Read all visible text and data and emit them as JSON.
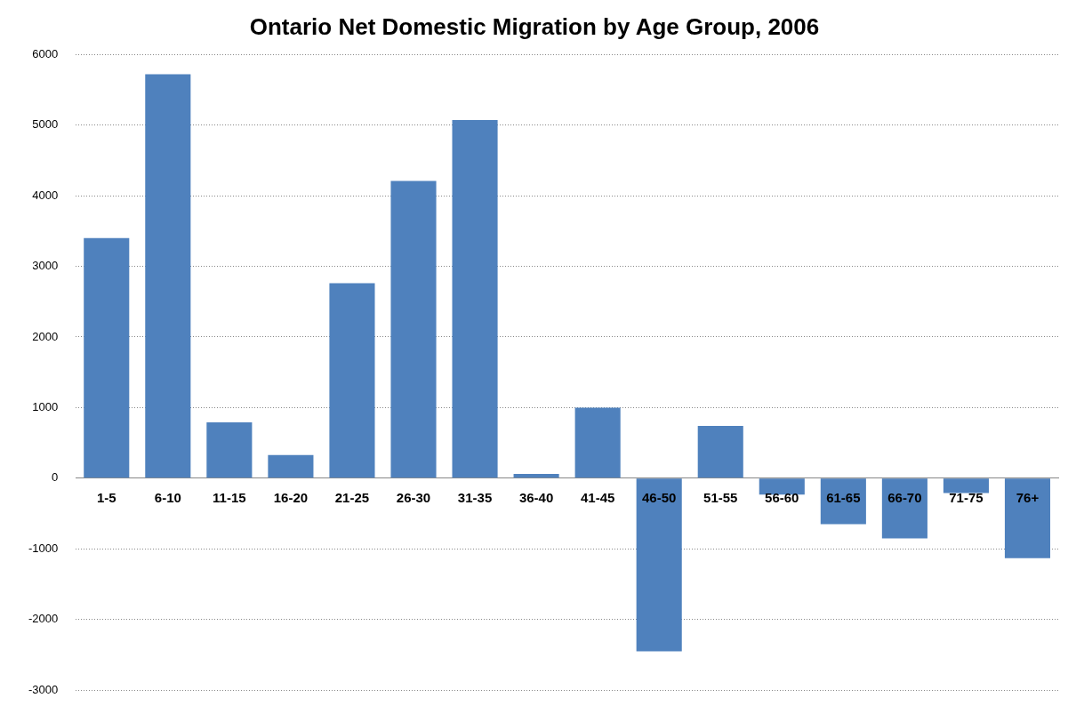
{
  "chart_data": {
    "type": "bar",
    "title": "Ontario Net Domestic Migration by Age Group, 2006",
    "categories": [
      "1-5",
      "6-10",
      "11-15",
      "16-20",
      "21-25",
      "26-30",
      "31-35",
      "36-40",
      "41-45",
      "46-50",
      "51-55",
      "56-60",
      "61-65",
      "66-70",
      "71-75",
      "76+"
    ],
    "values": [
      3400,
      5720,
      790,
      330,
      2760,
      4210,
      5070,
      60,
      1000,
      -2450,
      740,
      -230,
      -650,
      -850,
      -210,
      -1130
    ],
    "color": "#4f81bd",
    "ylim": [
      -3000,
      6000
    ],
    "yticks": [
      -3000,
      -2000,
      -1000,
      0,
      1000,
      2000,
      3000,
      4000,
      5000,
      6000
    ],
    "grid": "y",
    "legend": false
  }
}
